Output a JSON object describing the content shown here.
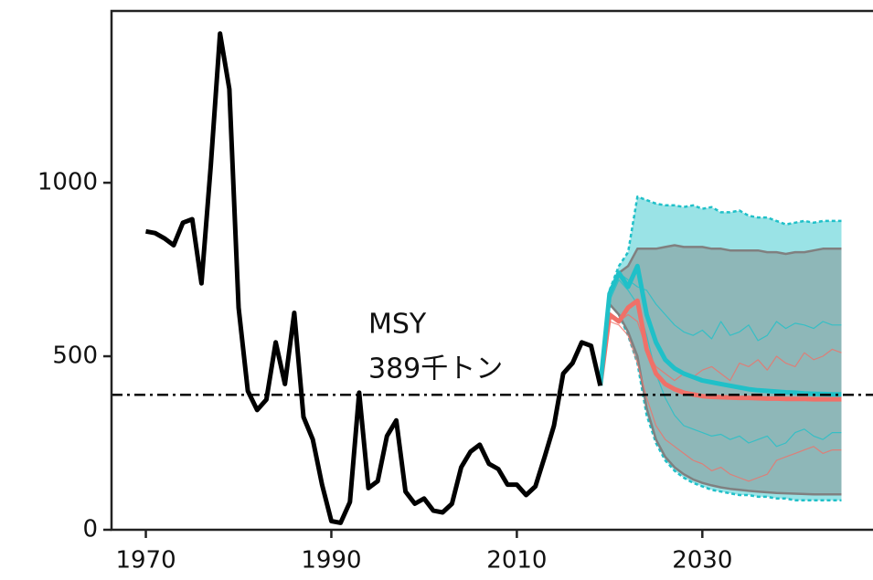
{
  "chart_data": {
    "type": "line",
    "annotations": [
      "MSY",
      "389千トン"
    ],
    "msy": {
      "value": 389,
      "color": "#000000"
    },
    "xlim": [
      1966.3,
      2048.4
    ],
    "ylim": [
      0,
      1495
    ],
    "xticks": [
      1970,
      1990,
      2010,
      2030
    ],
    "yticks": [
      0,
      500,
      1000
    ],
    "history": {
      "color": "#000000",
      "x": [
        1970,
        1971,
        1972,
        1973,
        1974,
        1975,
        1976,
        1977,
        1978,
        1979,
        1980,
        1981,
        1982,
        1983,
        1984,
        1985,
        1986,
        1987,
        1988,
        1989,
        1990,
        1991,
        1992,
        1993,
        1994,
        1995,
        1996,
        1997,
        1998,
        1999,
        2000,
        2001,
        2002,
        2003,
        2004,
        2005,
        2006,
        2007,
        2008,
        2009,
        2010,
        2011,
        2012,
        2013,
        2014,
        2015,
        2016,
        2017,
        2018,
        2019
      ],
      "values": [
        860,
        855,
        840,
        820,
        885,
        895,
        710,
        1050,
        1430,
        1270,
        640,
        400,
        345,
        375,
        540,
        420,
        625,
        325,
        260,
        130,
        25,
        20,
        80,
        395,
        120,
        140,
        270,
        315,
        110,
        75,
        90,
        55,
        50,
        75,
        180,
        225,
        245,
        190,
        175,
        130,
        130,
        100,
        125,
        210,
        300,
        450,
        480,
        540,
        530,
        415
      ]
    },
    "projection": {
      "x": [
        2019,
        2020,
        2021,
        2022,
        2023,
        2024,
        2025,
        2026,
        2027,
        2028,
        2029,
        2030,
        2031,
        2032,
        2033,
        2034,
        2035,
        2036,
        2037,
        2038,
        2039,
        2040,
        2041,
        2042,
        2043,
        2044,
        2045
      ],
      "bands": [
        {
          "color": "#20c0c8",
          "upper": [
            415,
            690,
            760,
            800,
            960,
            950,
            940,
            935,
            935,
            930,
            935,
            925,
            930,
            915,
            915,
            920,
            905,
            900,
            900,
            890,
            880,
            885,
            890,
            885,
            890,
            890,
            890
          ],
          "lower": [
            415,
            650,
            620,
            560,
            480,
            330,
            250,
            200,
            170,
            150,
            135,
            125,
            115,
            110,
            105,
            100,
            100,
            95,
            95,
            90,
            90,
            85,
            85,
            85,
            85,
            85,
            85
          ]
        },
        {
          "color": "#808080",
          "upper": [
            415,
            680,
            740,
            760,
            810,
            810,
            810,
            815,
            820,
            815,
            815,
            815,
            810,
            810,
            805,
            805,
            805,
            805,
            800,
            800,
            795,
            800,
            800,
            805,
            810,
            810,
            810
          ],
          "lower": [
            415,
            650,
            620,
            570,
            500,
            350,
            260,
            210,
            180,
            160,
            145,
            135,
            128,
            122,
            118,
            115,
            112,
            110,
            108,
            106,
            105,
            104,
            103,
            102,
            102,
            102,
            102
          ]
        }
      ],
      "series": [
        {
          "color": "#20c0c8",
          "width": 1.2,
          "values": [
            415,
            680,
            740,
            720,
            700,
            690,
            650,
            620,
            590,
            570,
            560,
            575,
            550,
            600,
            560,
            570,
            590,
            545,
            560,
            600,
            580,
            595,
            590,
            580,
            600,
            590,
            590
          ]
        },
        {
          "color": "#20c0c8",
          "width": 1.2,
          "values": [
            415,
            660,
            720,
            690,
            650,
            560,
            450,
            380,
            330,
            300,
            290,
            280,
            270,
            275,
            260,
            270,
            250,
            260,
            270,
            240,
            250,
            280,
            290,
            270,
            260,
            280,
            280
          ]
        },
        {
          "color": "#f07068",
          "width": 1.2,
          "values": [
            415,
            610,
            600,
            620,
            600,
            520,
            470,
            450,
            430,
            450,
            440,
            460,
            470,
            450,
            430,
            480,
            470,
            490,
            460,
            500,
            480,
            470,
            510,
            490,
            500,
            520,
            510
          ]
        },
        {
          "color": "#f07068",
          "width": 1.2,
          "values": [
            415,
            600,
            590,
            560,
            480,
            380,
            300,
            260,
            240,
            220,
            200,
            190,
            170,
            180,
            160,
            150,
            140,
            150,
            160,
            200,
            210,
            220,
            230,
            240,
            220,
            230,
            230
          ]
        },
        {
          "color": "#f07068",
          "width": 5,
          "values": [
            415,
            620,
            600,
            640,
            660,
            520,
            450,
            420,
            405,
            395,
            390,
            385,
            383,
            382,
            381,
            380,
            380,
            379,
            378,
            378,
            377,
            377,
            377,
            376,
            376,
            376,
            376
          ]
        },
        {
          "color": "#20c0c8",
          "width": 5,
          "values": [
            415,
            680,
            740,
            700,
            760,
            620,
            540,
            490,
            465,
            450,
            440,
            430,
            425,
            420,
            415,
            410,
            405,
            402,
            400,
            398,
            396,
            395,
            393,
            392,
            391,
            390,
            390
          ]
        }
      ]
    }
  }
}
